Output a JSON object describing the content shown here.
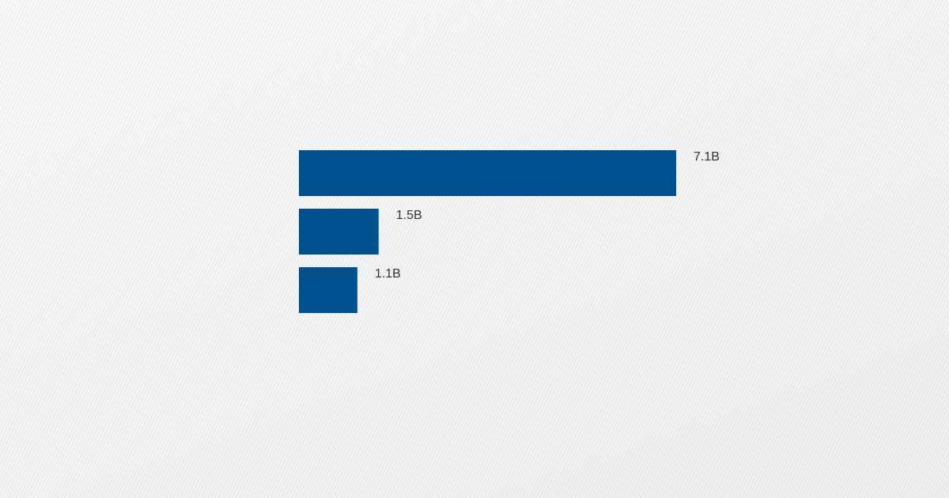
{
  "chart_data": {
    "type": "bar",
    "orientation": "horizontal",
    "categories": [
      null,
      null,
      null
    ],
    "values": [
      7.1,
      1.5,
      1.1
    ],
    "value_labels": [
      "7.1B",
      "1.5B",
      "1.1B"
    ],
    "color": "#03508f"
  }
}
